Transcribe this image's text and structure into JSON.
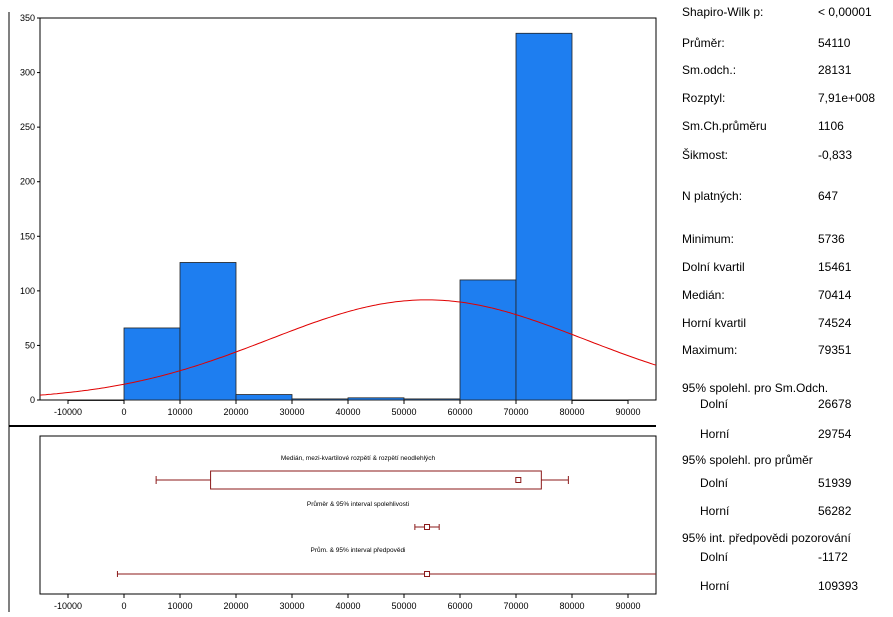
{
  "chart_data": [
    {
      "type": "bar",
      "title": "",
      "xlabel": "",
      "ylabel": "",
      "x_ticks": [
        -10000,
        0,
        10000,
        20000,
        30000,
        40000,
        50000,
        60000,
        70000,
        80000,
        90000
      ],
      "y_ticks": [
        0,
        50,
        100,
        150,
        200,
        250,
        300,
        350
      ],
      "xlim": [
        -15000,
        95000
      ],
      "ylim": [
        0,
        350
      ],
      "bins": [
        {
          "from": -10000,
          "to": 0,
          "count": 0
        },
        {
          "from": 0,
          "to": 10000,
          "count": 66
        },
        {
          "from": 10000,
          "to": 20000,
          "count": 126
        },
        {
          "from": 20000,
          "to": 30000,
          "count": 5
        },
        {
          "from": 30000,
          "to": 40000,
          "count": 1
        },
        {
          "from": 40000,
          "to": 50000,
          "count": 2
        },
        {
          "from": 50000,
          "to": 60000,
          "count": 1
        },
        {
          "from": 60000,
          "to": 70000,
          "count": 110
        },
        {
          "from": 70000,
          "to": 80000,
          "count": 336
        },
        {
          "from": 80000,
          "to": 90000,
          "count": 0
        }
      ],
      "normal_curve": {
        "mean": 54110,
        "sd": 28131,
        "n": 647,
        "bin_width": 10000,
        "color": "#e00000"
      },
      "bar_color": "#1e7ef0",
      "grid": false
    },
    {
      "type": "box",
      "xlim": [
        -15000,
        95000
      ],
      "x_ticks": [
        -10000,
        0,
        10000,
        20000,
        30000,
        40000,
        50000,
        60000,
        70000,
        80000,
        90000
      ],
      "color": "#8b1a1a",
      "rows": [
        {
          "label": "Medián, mezi-kvartilové rozpětí & rozpětí neodlehlých",
          "min": 5736,
          "q1": 15461,
          "median": 70414,
          "q3": 74524,
          "max": 79351
        },
        {
          "label": "Průměr & 95% interval spolehlivosti",
          "center": 54110,
          "low": 51939,
          "high": 56282
        },
        {
          "label": "Prům. & 95% interval předpovědi",
          "center": 54110,
          "low": -1172,
          "high": 109393
        }
      ]
    }
  ],
  "stats": [
    {
      "label": "Shapiro-Wilk p:",
      "value": "< 0,00001"
    },
    {
      "label": "Průměr:",
      "value": "54110"
    },
    {
      "label": "Sm.odch.:",
      "value": "28131"
    },
    {
      "label": "Rozptyl:",
      "value": "7,91e+008"
    },
    {
      "label": "Sm.Ch.průměru",
      "value": "1106"
    },
    {
      "label": "Šikmost:",
      "value": "-0,833"
    },
    {
      "label": "N platných:",
      "value": "647"
    },
    {
      "label": "Minimum:",
      "value": "5736"
    },
    {
      "label": "Dolní kvartil",
      "value": "15461"
    },
    {
      "label": "Medián:",
      "value": "70414"
    },
    {
      "label": "Horní kvartil",
      "value": "74524"
    },
    {
      "label": "Maximum:",
      "value": "79351"
    },
    {
      "heading": "95% spolehl. pro Sm.Odch."
    },
    {
      "label": "Dolní",
      "value": "26678",
      "indent": true
    },
    {
      "label": "Horní",
      "value": "29754",
      "indent": true
    },
    {
      "heading": "95% spolehl. pro průměr"
    },
    {
      "label": "Dolní",
      "value": "51939",
      "indent": true
    },
    {
      "label": "Horní",
      "value": "56282",
      "indent": true
    },
    {
      "heading": "95% int. předpovědi pozorování"
    },
    {
      "label": "Dolní",
      "value": "-1172",
      "indent": true
    },
    {
      "label": "Horní",
      "value": "109393",
      "indent": true
    }
  ]
}
